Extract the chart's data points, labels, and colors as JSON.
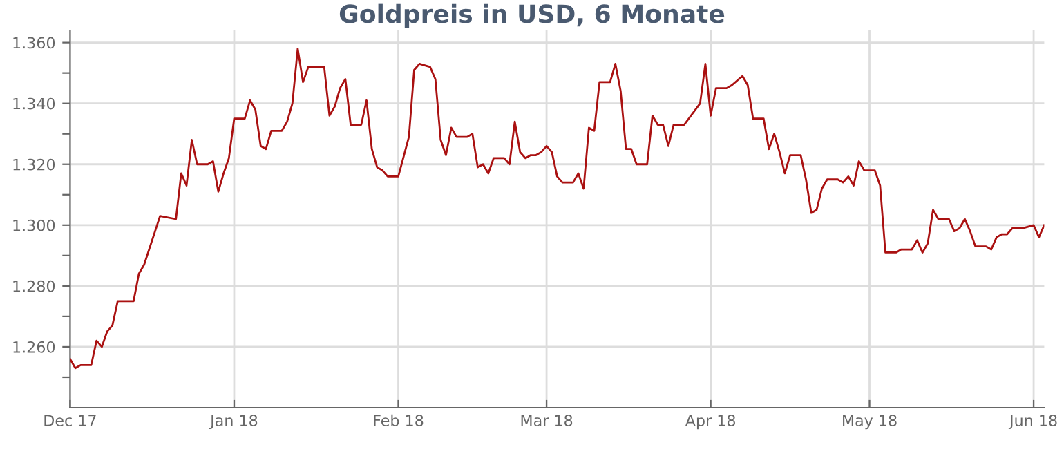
{
  "chart_data": {
    "type": "line",
    "title": "Goldpreis in USD, 6 Monate",
    "x": [
      "2017-12-01",
      "2017-12-02",
      "2017-12-03",
      "2017-12-05",
      "2017-12-06",
      "2017-12-07",
      "2017-12-08",
      "2017-12-09",
      "2017-12-10",
      "2017-12-13",
      "2017-12-14",
      "2017-12-15",
      "2017-12-18",
      "2017-12-21",
      "2017-12-22",
      "2017-12-23",
      "2017-12-24",
      "2017-12-25",
      "2017-12-27",
      "2017-12-28",
      "2017-12-29",
      "2017-12-30",
      "2017-12-31",
      "2018-01-01",
      "2018-01-03",
      "2018-01-04",
      "2018-01-05",
      "2018-01-06",
      "2018-01-07",
      "2018-01-08",
      "2018-01-10",
      "2018-01-11",
      "2018-01-12",
      "2018-01-13",
      "2018-01-14",
      "2018-01-15",
      "2018-01-18",
      "2018-01-19",
      "2018-01-20",
      "2018-01-21",
      "2018-01-22",
      "2018-01-23",
      "2018-01-25",
      "2018-01-26",
      "2018-01-27",
      "2018-01-28",
      "2018-01-29",
      "2018-01-30",
      "2018-02-01",
      "2018-02-03",
      "2018-02-04",
      "2018-02-05",
      "2018-02-07",
      "2018-02-08",
      "2018-02-09",
      "2018-02-10",
      "2018-02-11",
      "2018-02-12",
      "2018-02-14",
      "2018-02-15",
      "2018-02-16",
      "2018-02-17",
      "2018-02-18",
      "2018-02-19",
      "2018-02-21",
      "2018-02-22",
      "2018-02-23",
      "2018-02-24",
      "2018-02-25",
      "2018-02-26",
      "2018-02-27",
      "2018-02-28",
      "2018-03-01",
      "2018-03-02",
      "2018-03-03",
      "2018-03-04",
      "2018-03-06",
      "2018-03-07",
      "2018-03-08",
      "2018-03-09",
      "2018-03-10",
      "2018-03-11",
      "2018-03-13",
      "2018-03-14",
      "2018-03-15",
      "2018-03-16",
      "2018-03-17",
      "2018-03-18",
      "2018-03-20",
      "2018-03-21",
      "2018-03-22",
      "2018-03-23",
      "2018-03-24",
      "2018-03-25",
      "2018-03-27",
      "2018-03-30",
      "2018-03-31",
      "2018-04-01",
      "2018-04-02",
      "2018-04-04",
      "2018-04-05",
      "2018-04-07",
      "2018-04-08",
      "2018-04-09",
      "2018-04-11",
      "2018-04-12",
      "2018-04-13",
      "2018-04-14",
      "2018-04-15",
      "2018-04-16",
      "2018-04-18",
      "2018-04-19",
      "2018-04-20",
      "2018-04-21",
      "2018-04-22",
      "2018-04-23",
      "2018-04-25",
      "2018-04-26",
      "2018-04-27",
      "2018-04-28",
      "2018-04-29",
      "2018-04-30",
      "2018-05-02",
      "2018-05-03",
      "2018-05-04",
      "2018-05-06",
      "2018-05-07",
      "2018-05-09",
      "2018-05-10",
      "2018-05-11",
      "2018-05-12",
      "2018-05-13",
      "2018-05-14",
      "2018-05-16",
      "2018-05-17",
      "2018-05-18",
      "2018-05-19",
      "2018-05-20",
      "2018-05-21",
      "2018-05-23",
      "2018-05-24",
      "2018-05-25",
      "2018-05-26",
      "2018-05-27",
      "2018-05-28",
      "2018-05-30",
      "2018-06-01",
      "2018-06-02",
      "2018-06-03"
    ],
    "series": [
      {
        "color": "#aa1111",
        "values": [
          1256,
          1253,
          1254,
          1254,
          1262,
          1260,
          1265,
          1267,
          1275,
          1275,
          1284,
          1287,
          1303,
          1302,
          1317,
          1313,
          1328,
          1320,
          1320,
          1321,
          1311,
          1317,
          1322,
          1335,
          1335,
          1341,
          1338,
          1326,
          1325,
          1331,
          1331,
          1334,
          1340,
          1358,
          1347,
          1352,
          1352,
          1336,
          1339,
          1345,
          1348,
          1333,
          1333,
          1341,
          1325,
          1319,
          1318,
          1316,
          1316,
          1329,
          1351,
          1353,
          1352,
          1348,
          1328,
          1323,
          1332,
          1329,
          1329,
          1330,
          1319,
          1320,
          1317,
          1322,
          1322,
          1320,
          1334,
          1324,
          1322,
          1323,
          1323,
          1324,
          1326,
          1324,
          1316,
          1314,
          1314,
          1317,
          1312,
          1332,
          1331,
          1347,
          1347,
          1353,
          1344,
          1325,
          1325,
          1320,
          1320,
          1336,
          1333,
          1333,
          1326,
          1333,
          1333,
          1340,
          1353,
          1336,
          1345,
          1345,
          1346,
          1349,
          1346,
          1335,
          1335,
          1325,
          1330,
          1324,
          1317,
          1323,
          1323,
          1315,
          1304,
          1305,
          1312,
          1315,
          1315,
          1314,
          1316,
          1313,
          1321,
          1318,
          1318,
          1313,
          1291,
          1291,
          1292,
          1292,
          1295,
          1291,
          1294,
          1305,
          1302,
          1302,
          1298,
          1299,
          1302,
          1298,
          1293,
          1293,
          1292,
          1296,
          1297,
          1297,
          1299,
          1299,
          1300,
          1296,
          1300
        ]
      }
    ],
    "xlim": [
      "2017-12-01",
      "2018-06-03"
    ],
    "xticks": [
      {
        "value": "2017-12-01",
        "label": "Dec 17"
      },
      {
        "value": "2018-01-01",
        "label": "Jan 18"
      },
      {
        "value": "2018-02-01",
        "label": "Feb 18"
      },
      {
        "value": "2018-03-01",
        "label": "Mar 18"
      },
      {
        "value": "2018-04-01",
        "label": "Apr 18"
      },
      {
        "value": "2018-05-01",
        "label": "May 18"
      },
      {
        "value": "2018-06-01",
        "label": "Jun 18"
      }
    ],
    "ylim": [
      1240,
      1364
    ],
    "yticks": [
      {
        "value": 1250,
        "label": null
      },
      {
        "value": 1260,
        "label": "1.260"
      },
      {
        "value": 1270,
        "label": null
      },
      {
        "value": 1280,
        "label": "1.280"
      },
      {
        "value": 1290,
        "label": null
      },
      {
        "value": 1300,
        "label": "1.300"
      },
      {
        "value": 1310,
        "label": null
      },
      {
        "value": 1320,
        "label": "1.320"
      },
      {
        "value": 1330,
        "label": null
      },
      {
        "value": 1340,
        "label": "1.340"
      },
      {
        "value": 1350,
        "label": null
      },
      {
        "value": 1360,
        "label": "1.360"
      }
    ],
    "grid": true,
    "legend": false,
    "marker": "none",
    "line_style": "solid"
  }
}
